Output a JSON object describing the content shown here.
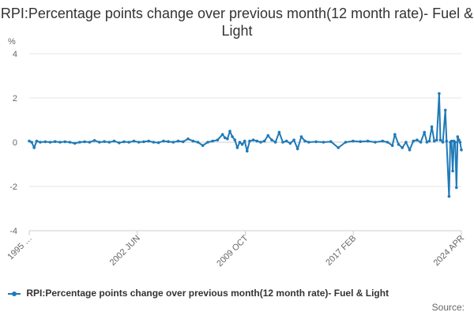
{
  "chart_data": {
    "type": "line",
    "title": "RPI:Percentage points change over previous month(12 month rate)- Fuel & Light",
    "unit_label": "%",
    "xlabel": "",
    "ylabel": "",
    "ylim": [
      -4,
      4
    ],
    "y_ticks": [
      4,
      2,
      0,
      -2,
      -4
    ],
    "x_tick_labels": [
      "1995 …",
      "2002 JUN",
      "2009 OCT",
      "2017 FEB",
      "2024 APR"
    ],
    "x_range": [
      "1995-01",
      "2024-04"
    ],
    "grid": true,
    "legend_position": "bottom",
    "color": "#1f7ab8",
    "series": [
      {
        "name": "RPI:Percentage points change over previous month(12 month rate)- Fuel & Light",
        "points": [
          [
            "1995-01",
            0.05
          ],
          [
            "1995-03",
            0.0
          ],
          [
            "1995-05",
            -0.25
          ],
          [
            "1995-07",
            0.05
          ],
          [
            "1995-10",
            0.0
          ],
          [
            "1996-02",
            0.02
          ],
          [
            "1996-06",
            0.0
          ],
          [
            "1996-10",
            0.03
          ],
          [
            "1997-02",
            0.0
          ],
          [
            "1997-06",
            0.02
          ],
          [
            "1997-10",
            0.0
          ],
          [
            "1998-02",
            -0.05
          ],
          [
            "1998-06",
            0.0
          ],
          [
            "1998-10",
            0.02
          ],
          [
            "1999-02",
            0.0
          ],
          [
            "1999-06",
            0.08
          ],
          [
            "1999-10",
            0.0
          ],
          [
            "2000-02",
            0.03
          ],
          [
            "2000-06",
            0.0
          ],
          [
            "2000-10",
            0.05
          ],
          [
            "2001-02",
            -0.03
          ],
          [
            "2001-06",
            0.02
          ],
          [
            "2001-10",
            0.0
          ],
          [
            "2002-02",
            0.05
          ],
          [
            "2002-06",
            0.0
          ],
          [
            "2002-10",
            0.02
          ],
          [
            "2003-02",
            0.05
          ],
          [
            "2003-06",
            0.0
          ],
          [
            "2003-10",
            -0.02
          ],
          [
            "2004-02",
            0.05
          ],
          [
            "2004-06",
            0.03
          ],
          [
            "2004-10",
            0.0
          ],
          [
            "2005-02",
            0.05
          ],
          [
            "2005-06",
            0.02
          ],
          [
            "2005-10",
            0.15
          ],
          [
            "2006-02",
            0.05
          ],
          [
            "2006-06",
            0.0
          ],
          [
            "2006-10",
            -0.15
          ],
          [
            "2007-02",
            0.0
          ],
          [
            "2007-06",
            0.05
          ],
          [
            "2007-10",
            0.1
          ],
          [
            "2008-02",
            0.35
          ],
          [
            "2008-04",
            0.2
          ],
          [
            "2008-06",
            0.15
          ],
          [
            "2008-08",
            0.5
          ],
          [
            "2008-10",
            0.25
          ],
          [
            "2008-12",
            0.1
          ],
          [
            "2009-02",
            -0.25
          ],
          [
            "2009-04",
            0.0
          ],
          [
            "2009-06",
            -0.1
          ],
          [
            "2009-08",
            0.05
          ],
          [
            "2009-10",
            -0.4
          ],
          [
            "2009-12",
            0.05
          ],
          [
            "2010-03",
            0.1
          ],
          [
            "2010-06",
            0.05
          ],
          [
            "2010-09",
            0.0
          ],
          [
            "2010-12",
            0.05
          ],
          [
            "2011-03",
            0.3
          ],
          [
            "2011-06",
            0.1
          ],
          [
            "2011-09",
            0.0
          ],
          [
            "2011-12",
            0.45
          ],
          [
            "2012-03",
            0.0
          ],
          [
            "2012-06",
            0.05
          ],
          [
            "2012-09",
            -0.05
          ],
          [
            "2012-12",
            0.1
          ],
          [
            "2013-03",
            -0.3
          ],
          [
            "2013-06",
            0.25
          ],
          [
            "2013-09",
            0.05
          ],
          [
            "2013-12",
            0.0
          ],
          [
            "2014-06",
            0.02
          ],
          [
            "2014-12",
            0.0
          ],
          [
            "2015-06",
            0.03
          ],
          [
            "2015-12",
            -0.25
          ],
          [
            "2016-06",
            0.0
          ],
          [
            "2016-12",
            0.05
          ],
          [
            "2017-06",
            0.03
          ],
          [
            "2017-12",
            0.05
          ],
          [
            "2018-06",
            0.0
          ],
          [
            "2018-12",
            0.05
          ],
          [
            "2019-04",
            0.0
          ],
          [
            "2019-08",
            -0.15
          ],
          [
            "2019-10",
            0.35
          ],
          [
            "2020-01",
            -0.1
          ],
          [
            "2020-04",
            -0.25
          ],
          [
            "2020-07",
            0.0
          ],
          [
            "2020-10",
            -0.35
          ],
          [
            "2021-01",
            0.05
          ],
          [
            "2021-04",
            0.1
          ],
          [
            "2021-07",
            0.0
          ],
          [
            "2021-10",
            0.45
          ],
          [
            "2021-12",
            0.0
          ],
          [
            "2022-02",
            0.05
          ],
          [
            "2022-04",
            0.7
          ],
          [
            "2022-06",
            0.05
          ],
          [
            "2022-08",
            0.1
          ],
          [
            "2022-10",
            2.2
          ],
          [
            "2022-11",
            0.1
          ],
          [
            "2023-01",
            0.0
          ],
          [
            "2023-03",
            1.45
          ],
          [
            "2023-04",
            0.05
          ],
          [
            "2023-06",
            -2.45
          ],
          [
            "2023-07",
            0.0
          ],
          [
            "2023-08",
            0.05
          ],
          [
            "2023-09",
            -1.3
          ],
          [
            "2023-10",
            0.05
          ],
          [
            "2023-11",
            0.0
          ],
          [
            "2023-12",
            -2.05
          ],
          [
            "2024-01",
            0.25
          ],
          [
            "2024-02",
            0.1
          ],
          [
            "2024-03",
            0.0
          ],
          [
            "2024-04",
            -0.35
          ]
        ]
      }
    ]
  },
  "source_label": "Source:"
}
